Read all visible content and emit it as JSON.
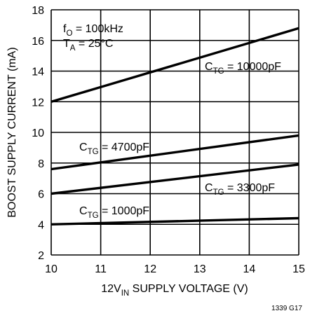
{
  "chart_data": {
    "type": "line",
    "xlabel": {
      "main": "12V",
      "sub": "IN",
      "rest": " SUPPLY VOLTAGE (V)"
    },
    "ylabel": "BOOST SUPPLY CURRENT (mA)",
    "xlim": [
      10,
      15
    ],
    "ylim": [
      2,
      18
    ],
    "xticks": [
      10,
      11,
      12,
      13,
      14,
      15
    ],
    "yticks": [
      2,
      4,
      6,
      8,
      10,
      12,
      14,
      16,
      18
    ],
    "grid": true,
    "series": [
      {
        "name": {
          "main": "C",
          "sub": "TG",
          "rest": " = 10000pF"
        },
        "x": [
          10,
          15
        ],
        "y": [
          12.0,
          16.8
        ]
      },
      {
        "name": {
          "main": "C",
          "sub": "TG",
          "rest": " = 4700pF"
        },
        "x": [
          10,
          15
        ],
        "y": [
          7.6,
          9.8
        ]
      },
      {
        "name": {
          "main": "C",
          "sub": "TG",
          "rest": " = 3300pF"
        },
        "x": [
          10,
          15
        ],
        "y": [
          6.0,
          7.9
        ]
      },
      {
        "name": {
          "main": "C",
          "sub": "TG",
          "rest": " = 1000pF"
        },
        "x": [
          10,
          15
        ],
        "y": [
          4.0,
          4.4
        ]
      }
    ],
    "conditions": [
      {
        "main": "f",
        "sub": "O",
        "rest": " = 100kHz"
      },
      {
        "main": "T",
        "sub": "A",
        "rest": " = 25°C"
      }
    ],
    "figure_id": "1339 G17"
  }
}
